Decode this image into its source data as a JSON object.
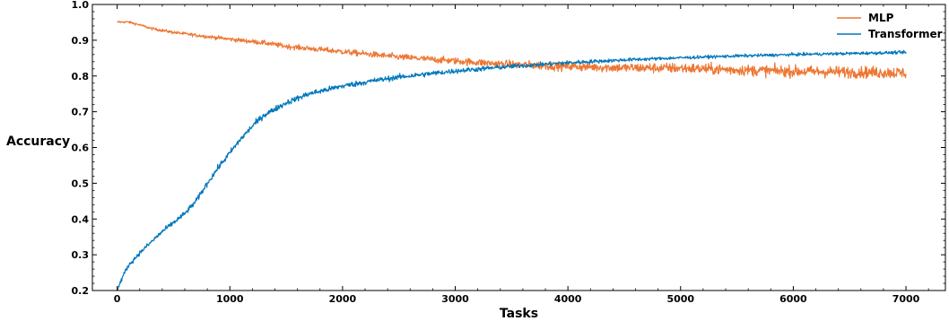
{
  "chart_data": {
    "type": "line",
    "title": "",
    "xlabel": "Tasks",
    "ylabel": "Accuracy",
    "xlim": [
      -220,
      7350
    ],
    "ylim": [
      0.2,
      1.0
    ],
    "xticks": [
      0,
      1000,
      2000,
      3000,
      4000,
      5000,
      6000,
      7000
    ],
    "yticks": [
      0.2,
      0.3,
      0.4,
      0.5,
      0.6,
      0.7,
      0.8,
      0.9,
      1.0
    ],
    "grid": false,
    "legend": "top-right",
    "series": [
      {
        "name": "MLP",
        "color": "#ee7733",
        "noise": [
          [
            0,
            0.002
          ],
          [
            1500,
            0.005
          ],
          [
            3000,
            0.007
          ],
          [
            4000,
            0.009
          ],
          [
            5500,
            0.011
          ],
          [
            7000,
            0.012
          ]
        ],
        "x": [
          0,
          100,
          200,
          300,
          500,
          700,
          1000,
          1300,
          1500,
          2000,
          2500,
          3000,
          3500,
          4000,
          4500,
          5000,
          5500,
          6000,
          6500,
          7000
        ],
        "y": [
          0.951,
          0.951,
          0.943,
          0.933,
          0.922,
          0.914,
          0.903,
          0.893,
          0.883,
          0.868,
          0.853,
          0.842,
          0.832,
          0.827,
          0.823,
          0.822,
          0.817,
          0.813,
          0.811,
          0.809
        ]
      },
      {
        "name": "Transformer",
        "color": "#0077bb",
        "noise": [
          [
            0,
            0.004
          ],
          [
            1000,
            0.006
          ],
          [
            3000,
            0.005
          ],
          [
            5000,
            0.003
          ],
          [
            7000,
            0.003
          ]
        ],
        "x": [
          0,
          50,
          100,
          200,
          300,
          400,
          500,
          600,
          700,
          800,
          900,
          1000,
          1100,
          1200,
          1300,
          1500,
          1700,
          2000,
          2300,
          2500,
          3000,
          3500,
          4000,
          4500,
          5000,
          5500,
          6000,
          6500,
          7000
        ],
        "y": [
          0.2,
          0.24,
          0.27,
          0.305,
          0.335,
          0.365,
          0.39,
          0.415,
          0.45,
          0.5,
          0.545,
          0.585,
          0.625,
          0.66,
          0.69,
          0.725,
          0.75,
          0.772,
          0.788,
          0.797,
          0.814,
          0.827,
          0.837,
          0.845,
          0.851,
          0.856,
          0.86,
          0.863,
          0.866
        ]
      }
    ]
  }
}
